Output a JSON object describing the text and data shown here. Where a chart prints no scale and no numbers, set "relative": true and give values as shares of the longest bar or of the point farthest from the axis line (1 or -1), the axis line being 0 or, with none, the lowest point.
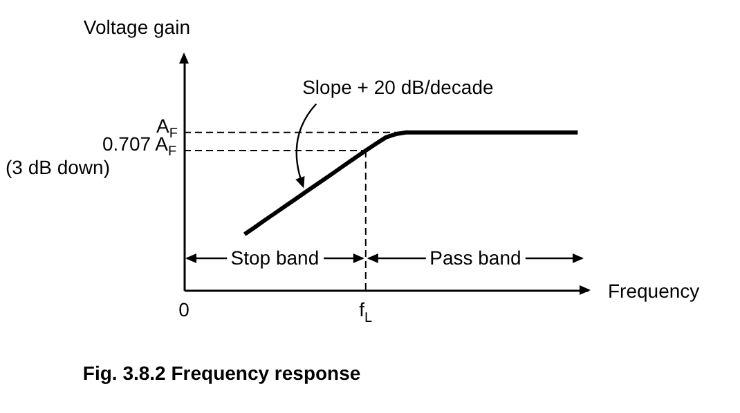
{
  "chart_data": {
    "type": "line",
    "title": "Fig. 3.8.2 Frequency response",
    "xlabel": "Frequency",
    "ylabel": "Voltage gain",
    "relative": true,
    "line_style": "solid",
    "categories": [
      "0",
      null,
      null,
      null,
      null,
      null,
      null,
      null,
      null,
      null,
      null,
      null,
      null,
      null,
      null,
      null,
      null,
      null,
      "f$_{L}$",
      null,
      null,
      null,
      null,
      null,
      null,
      null,
      null,
      null,
      null,
      null,
      null,
      null,
      null,
      null,
      null,
      null,
      null,
      null,
      null,
      null,
      null
    ],
    "series": [
      {
        "color": "#000000",
        "values": [
          null,
          null,
          null,
          null,
          null,
          null,
          0.354,
          0.398,
          0.443,
          0.487,
          0.531,
          0.575,
          0.62,
          0.664,
          0.708,
          0.752,
          0.797,
          0.841,
          0.885,
          0.928,
          0.969,
          0.99,
          1,
          1,
          1,
          1,
          1,
          1,
          1,
          1,
          1,
          1,
          1,
          1,
          1,
          1,
          1,
          1,
          1,
          1,
          null
        ]
      }
    ],
    "ref_lines": [
      {
        "axis": "y",
        "value": 1,
        "label": "A$_{F}$",
        "line_style": "dashed"
      },
      {
        "axis": "y",
        "value": 0.885,
        "label": "0.707 A$_{F}$",
        "line_style": "dashed"
      },
      {
        "axis": "x",
        "value": "f$_{L}$",
        "line_style": "dashed"
      }
    ],
    "annotations": [
      "Slope  + 20 dB/decade",
      "(3 dB down)",
      "Stop band",
      "Pass band"
    ]
  }
}
